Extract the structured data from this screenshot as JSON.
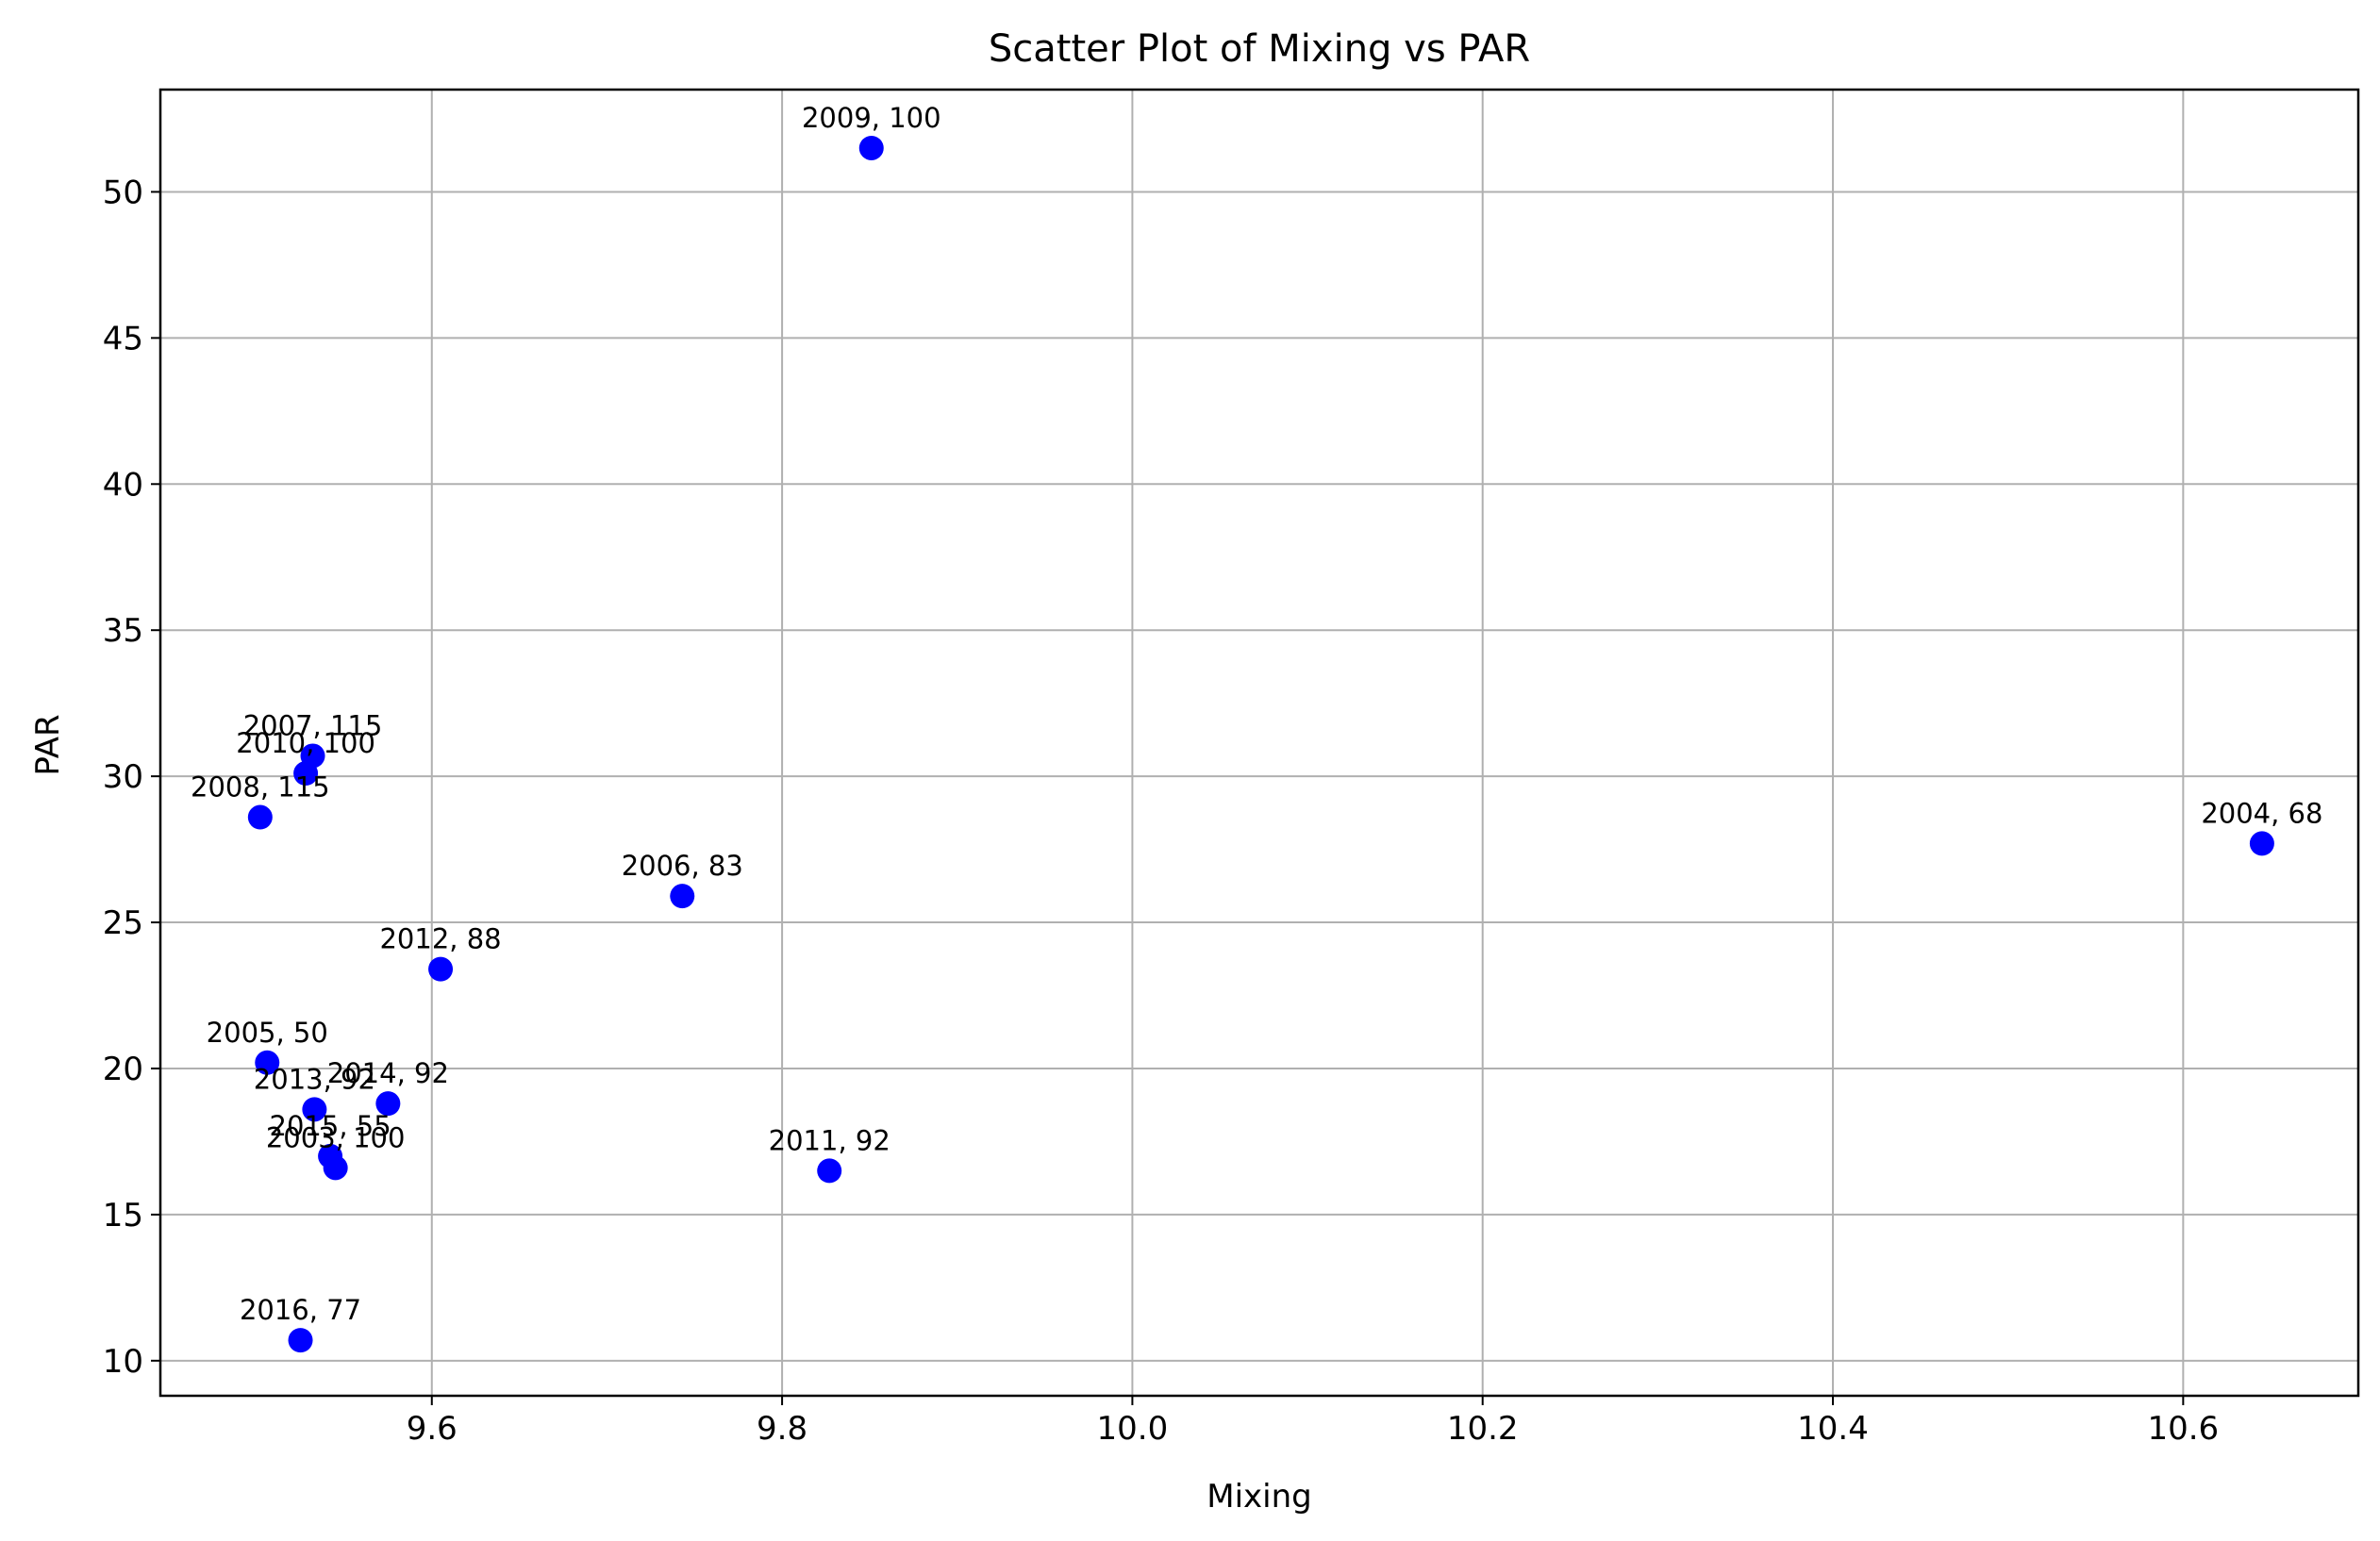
{
  "chart_data": {
    "type": "scatter",
    "title": "Scatter Plot of Mixing vs PAR",
    "xlabel": "Mixing",
    "ylabel": "PAR",
    "xlim": [
      9.445,
      10.7
    ],
    "ylim": [
      8.8,
      53.5
    ],
    "xticks": [
      "9.6",
      "9.8",
      "10.0",
      "10.2",
      "10.4",
      "10.6"
    ],
    "yticks": [
      "10",
      "15",
      "20",
      "25",
      "30",
      "35",
      "40",
      "45",
      "50"
    ],
    "grid": true,
    "point_color": "#0000ff",
    "points": [
      {
        "x": 9.851,
        "y": 51.5,
        "label": "2009, 100"
      },
      {
        "x": 9.532,
        "y": 30.7,
        "label": "2007, 115"
      },
      {
        "x": 9.528,
        "y": 30.1,
        "label": "2010, 100"
      },
      {
        "x": 9.502,
        "y": 28.6,
        "label": "2008, 115"
      },
      {
        "x": 10.645,
        "y": 27.7,
        "label": "2004, 68"
      },
      {
        "x": 9.743,
        "y": 25.9,
        "label": "2006, 83"
      },
      {
        "x": 9.605,
        "y": 23.4,
        "label": "2012, 88"
      },
      {
        "x": 9.506,
        "y": 20.2,
        "label": "2005, 50"
      },
      {
        "x": 9.575,
        "y": 18.8,
        "label": "2014, 92"
      },
      {
        "x": 9.533,
        "y": 18.6,
        "label": "2013, 92"
      },
      {
        "x": 9.542,
        "y": 17.0,
        "label": "2015, 55"
      },
      {
        "x": 9.545,
        "y": 16.6,
        "label": "2003, 100"
      },
      {
        "x": 9.827,
        "y": 16.5,
        "label": "2011, 92"
      },
      {
        "x": 9.525,
        "y": 10.7,
        "label": "2016, 77"
      }
    ]
  }
}
